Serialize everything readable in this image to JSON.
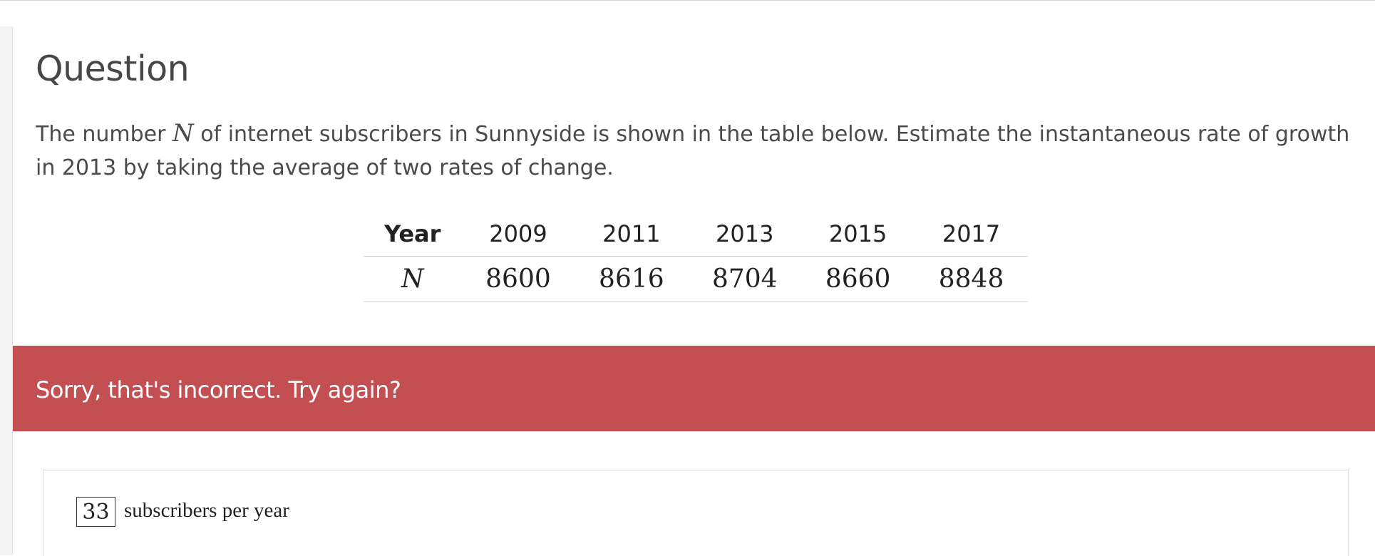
{
  "question": {
    "title": "Question",
    "prompt_before": "The number ",
    "variable": "N",
    "prompt_after": " of internet subscribers in Sunnyside is shown in the table below. Estimate the instantaneous rate of growth in 2013 by taking the average of two rates of change."
  },
  "table": {
    "year_label": "Year",
    "n_label": "N",
    "years": [
      "2009",
      "2011",
      "2013",
      "2015",
      "2017"
    ],
    "values": [
      "8600",
      "8616",
      "8704",
      "8660",
      "8848"
    ]
  },
  "feedback": {
    "message": "Sorry, that's incorrect. Try again?",
    "color": "#c44f53"
  },
  "answer": {
    "value": "33",
    "units": "subscribers per year"
  }
}
